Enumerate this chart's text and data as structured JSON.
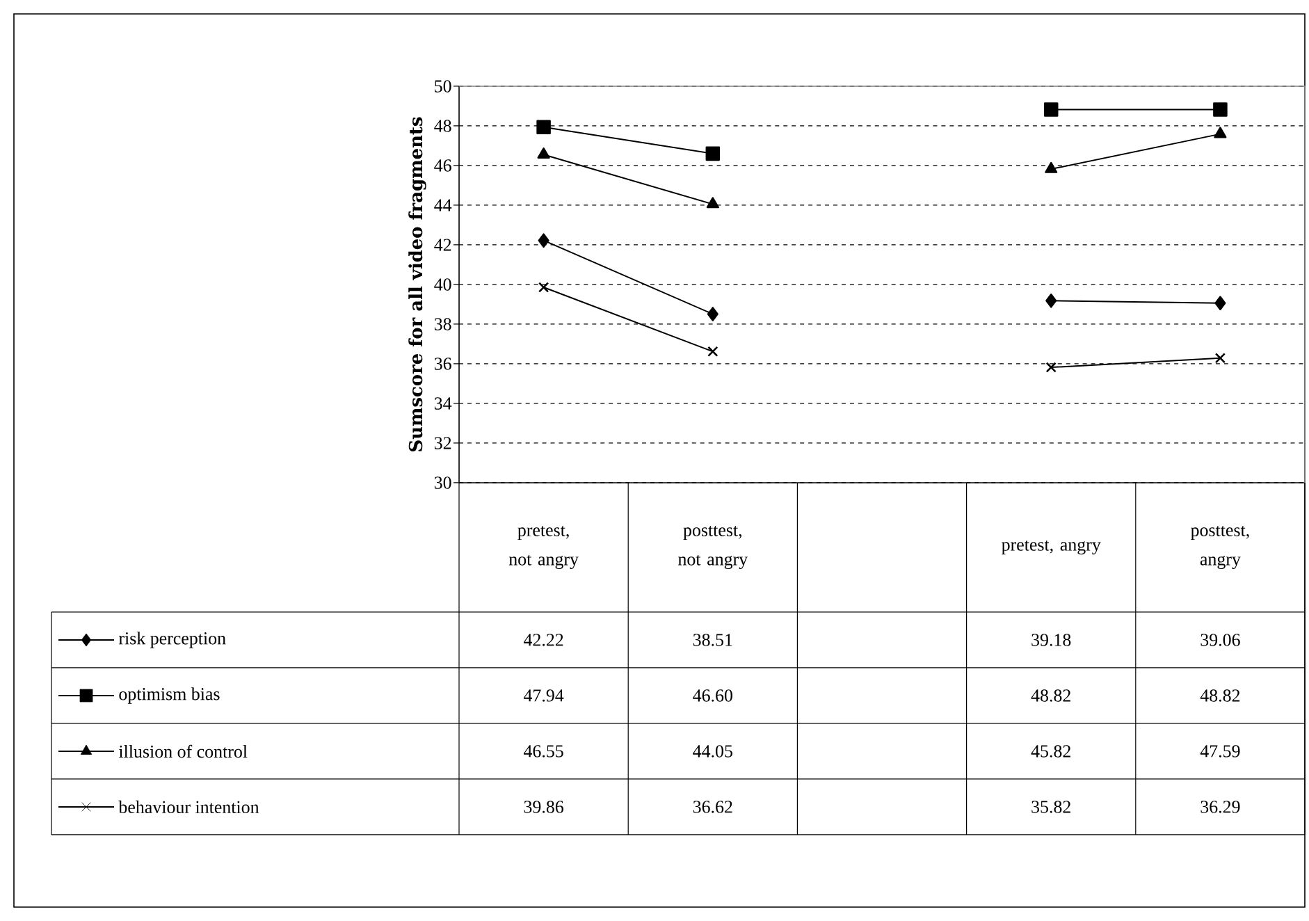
{
  "chart_data": {
    "type": "line",
    "ylabel": "Sumscore for all video fragments",
    "categories": [
      "pretest, not angry",
      "posttest, not angry",
      null,
      "pretest, angry",
      "posttest, angry"
    ],
    "series": [
      {
        "name": "risk perception",
        "color": "#000000",
        "marker": "diamond",
        "values": [
          42.22,
          38.51,
          null,
          39.18,
          39.06
        ],
        "value_labels": [
          "42.22",
          "38.51",
          null,
          "39.18",
          "39.06"
        ]
      },
      {
        "name": "optimism bias",
        "color": "#000000",
        "marker": "square",
        "values": [
          47.94,
          46.6,
          null,
          48.82,
          48.82
        ],
        "value_labels": [
          "47.94",
          "46.60",
          null,
          "48.82",
          "48.82"
        ]
      },
      {
        "name": "illusion of control",
        "color": "#000000",
        "marker": "triangle",
        "values": [
          46.55,
          44.05,
          null,
          45.82,
          47.59
        ],
        "value_labels": [
          "46.55",
          "44.05",
          null,
          "45.82",
          "47.59"
        ]
      },
      {
        "name": "behaviour intention",
        "color": "#000000",
        "marker": "cross",
        "values": [
          39.86,
          36.62,
          null,
          35.82,
          36.29
        ],
        "value_labels": [
          "39.86",
          "36.62",
          null,
          "35.82",
          "36.29"
        ]
      }
    ],
    "ylim": [
      30,
      50
    ],
    "yticks": [
      30,
      32,
      34,
      36,
      38,
      40,
      42,
      44,
      46,
      48,
      50
    ],
    "grid": "y",
    "legend": "left"
  }
}
